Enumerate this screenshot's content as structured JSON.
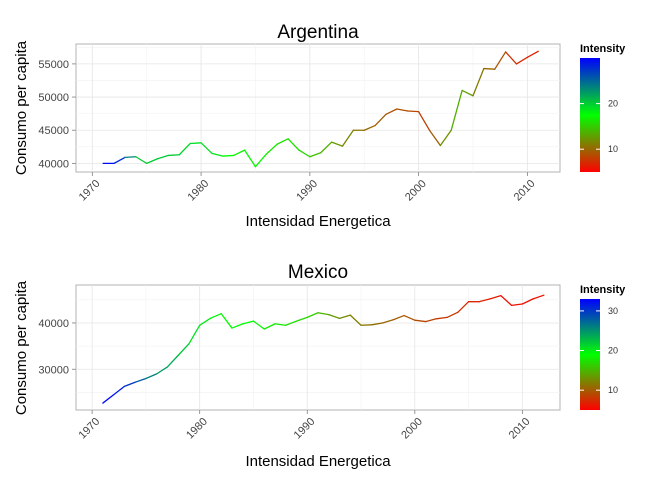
{
  "chart_data": [
    {
      "type": "line",
      "title": "Argentina",
      "xlabel": "Intensidad Energetica",
      "ylabel": "Consumo per capita",
      "xlim": [
        1968.5,
        2013
      ],
      "ylim": [
        38700,
        58000
      ],
      "x_ticks": [
        1970,
        1980,
        1990,
        2000,
        2010
      ],
      "y_ticks": [
        40000,
        45000,
        50000,
        55000
      ],
      "grid": true,
      "legend": {
        "title": "Intensity",
        "position": "right",
        "range": [
          5,
          30
        ],
        "ticks": [
          10,
          20
        ],
        "gradient": [
          "#ff0000",
          "#00ff00",
          "#0000ff"
        ]
      },
      "series": [
        {
          "x": [
            1971,
            1972,
            1973,
            1974,
            1975,
            1976,
            1977,
            1978,
            1979,
            1980,
            1981,
            1982,
            1983,
            1984,
            1985,
            1986,
            1987,
            1988,
            1989,
            1990,
            1991,
            1992,
            1993,
            1994,
            1995,
            1996,
            1997,
            1998,
            1999,
            2000,
            2001,
            2002,
            2003,
            2004,
            2005,
            2006,
            2007,
            2008,
            2009,
            2010,
            2011
          ],
          "y": [
            40000,
            40000,
            40900,
            41000,
            40000,
            40700,
            41200,
            41300,
            43000,
            43100,
            41500,
            41100,
            41200,
            42000,
            39500,
            41400,
            42900,
            43700,
            42000,
            41000,
            41600,
            43200,
            42600,
            45000,
            45000,
            45700,
            47400,
            48200,
            47900,
            47800,
            45000,
            42700,
            45000,
            51000,
            50200,
            54300,
            54200,
            56800,
            55000,
            56000,
            56900
          ],
          "intensity": [
            30,
            29,
            27,
            20,
            20,
            20,
            20,
            20,
            19,
            19,
            19,
            18,
            17,
            17,
            17,
            17,
            16,
            16,
            16,
            15,
            14,
            13,
            12,
            11,
            10,
            10,
            9,
            9,
            9,
            8,
            8,
            11,
            13,
            14,
            12,
            10,
            10,
            8,
            7,
            7,
            6
          ]
        }
      ]
    },
    {
      "type": "line",
      "title": "Mexico",
      "xlabel": "Intensidad Energetica",
      "ylabel": "Consumo per capita",
      "xlim": [
        1968.5,
        2013.5
      ],
      "ylim": [
        21200,
        48200
      ],
      "x_ticks": [
        1970,
        1980,
        1990,
        2000,
        2010
      ],
      "y_ticks": [
        30000,
        40000
      ],
      "grid": true,
      "legend": {
        "title": "Intensity",
        "position": "right",
        "range": [
          5,
          33
        ],
        "ticks": [
          10,
          20,
          30
        ],
        "gradient": [
          "#ff0000",
          "#00ff00",
          "#0000ff"
        ]
      },
      "series": [
        {
          "x": [
            1971,
            1972,
            1973,
            1974,
            1975,
            1976,
            1977,
            1978,
            1979,
            1980,
            1981,
            1982,
            1983,
            1984,
            1985,
            1986,
            1987,
            1988,
            1989,
            1990,
            1991,
            1992,
            1993,
            1994,
            1995,
            1996,
            1997,
            1998,
            1999,
            2000,
            2001,
            2002,
            2003,
            2004,
            2005,
            2006,
            2007,
            2008,
            2009,
            2010,
            2011,
            2012
          ],
          "y": [
            22700,
            24500,
            26300,
            27200,
            28000,
            29000,
            30500,
            33000,
            35500,
            39500,
            41000,
            42000,
            38900,
            39800,
            40400,
            38700,
            39800,
            39500,
            40400,
            41200,
            42200,
            41800,
            41000,
            41700,
            39500,
            39600,
            40000,
            40700,
            41600,
            40600,
            40300,
            40900,
            41200,
            42300,
            44600,
            44600,
            45200,
            45900,
            43800,
            44100,
            45200,
            46000
          ],
          "intensity": [
            33,
            32,
            31,
            29,
            27,
            25,
            24,
            23,
            21,
            20,
            20,
            19,
            19,
            19,
            19,
            18,
            18,
            18,
            17,
            17,
            16,
            14,
            13,
            12,
            12,
            11,
            11,
            10,
            10,
            9,
            9,
            8,
            8,
            8,
            7,
            7,
            7,
            6,
            6,
            6,
            6,
            6
          ]
        }
      ]
    }
  ]
}
